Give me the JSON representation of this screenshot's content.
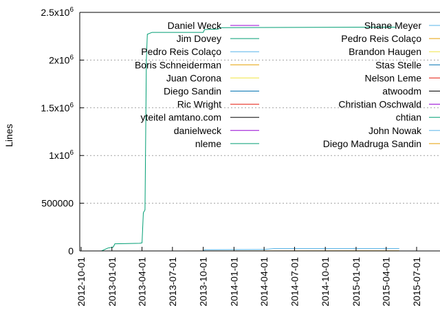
{
  "chart_data": {
    "type": "line",
    "title": "",
    "xlabel": "",
    "ylabel": "Lines",
    "x_range": [
      "2012-10-01",
      "2015-07-01"
    ],
    "ylim": [
      0,
      2500000
    ],
    "y_ticks": [
      {
        "value": 0,
        "label": "0",
        "sup": ""
      },
      {
        "value": 500000,
        "label": "500000",
        "sup": ""
      },
      {
        "value": 1000000,
        "label": "1x10",
        "sup": "6"
      },
      {
        "value": 1500000,
        "label": "1.5x10",
        "sup": "6"
      },
      {
        "value": 2000000,
        "label": "2x10",
        "sup": "6"
      },
      {
        "value": 2500000,
        "label": "2.5x10",
        "sup": "6"
      }
    ],
    "x_ticks": [
      "2012-10-01",
      "2013-01-01",
      "2013-04-01",
      "2013-07-01",
      "2013-10-01",
      "2014-01-01",
      "2014-04-01",
      "2014-07-01",
      "2014-10-01",
      "2015-01-01",
      "2015-04-01",
      "2015-07-01"
    ],
    "grid": "horizontal dotted at y ticks",
    "legend": "top, two columns",
    "series": [
      {
        "name": "Daniel Weck",
        "color": "#9400d3",
        "points": []
      },
      {
        "name": "Jim Dovey",
        "color": "#009e73",
        "points": []
      },
      {
        "name": "Pedro Reis Colaço",
        "color": "#56b4e9",
        "points": []
      },
      {
        "name": "Boris Schneiderman",
        "color": "#e69f00",
        "points": [
          [
            "2013-07-01",
            0
          ],
          [
            "2015-05-10",
            2000
          ]
        ]
      },
      {
        "name": "Juan Corona",
        "color": "#f0e442",
        "points": []
      },
      {
        "name": "Diego Sandin",
        "color": "#0072b2",
        "points": []
      },
      {
        "name": "Ric Wright",
        "color": "#e51e10",
        "points": []
      },
      {
        "name": "yteitel amtano.com",
        "color": "#000000",
        "points": []
      },
      {
        "name": "danielweck",
        "color": "#9400d3",
        "points": []
      },
      {
        "name": "nleme",
        "color": "#009e73",
        "points": [
          [
            "2012-12-01",
            0
          ],
          [
            "2012-12-20",
            30000
          ],
          [
            "2013-01-05",
            40000
          ],
          [
            "2013-01-10",
            75000
          ],
          [
            "2013-03-25",
            80000
          ],
          [
            "2013-04-01",
            85000
          ],
          [
            "2013-04-05",
            400000
          ],
          [
            "2013-04-10",
            430000
          ],
          [
            "2013-04-12",
            1200000
          ],
          [
            "2013-04-14",
            2000000
          ],
          [
            "2013-04-17",
            2270000
          ],
          [
            "2013-05-01",
            2290000
          ],
          [
            "2013-10-01",
            2290000
          ],
          [
            "2013-10-05",
            2320000
          ],
          [
            "2013-11-15",
            2325000
          ],
          [
            "2013-11-20",
            2340000
          ],
          [
            "2015-05-01",
            2345000
          ]
        ]
      },
      {
        "name": "Shane Meyer",
        "color": "#56b4e9",
        "points": [
          [
            "2013-10-01",
            0
          ],
          [
            "2013-10-05",
            12000
          ],
          [
            "2014-04-01",
            15000
          ],
          [
            "2014-05-01",
            25000
          ],
          [
            "2015-05-10",
            25000
          ]
        ]
      },
      {
        "name": "Pedro Reis Colaço",
        "color": "#e69f00",
        "points": []
      },
      {
        "name": "Brandon Haugen",
        "color": "#f0e442",
        "points": []
      },
      {
        "name": "Stas Stelle",
        "color": "#0072b2",
        "points": []
      },
      {
        "name": "Nelson Leme",
        "color": "#e51e10",
        "points": []
      },
      {
        "name": "atwoodm",
        "color": "#000000",
        "points": []
      },
      {
        "name": "Christian Oschwald",
        "color": "#9400d3",
        "points": []
      },
      {
        "name": "chtian",
        "color": "#009e73",
        "points": []
      },
      {
        "name": "John Nowak",
        "color": "#56b4e9",
        "points": []
      },
      {
        "name": "Diego Madruga Sandin",
        "color": "#e69f00",
        "points": []
      }
    ]
  }
}
